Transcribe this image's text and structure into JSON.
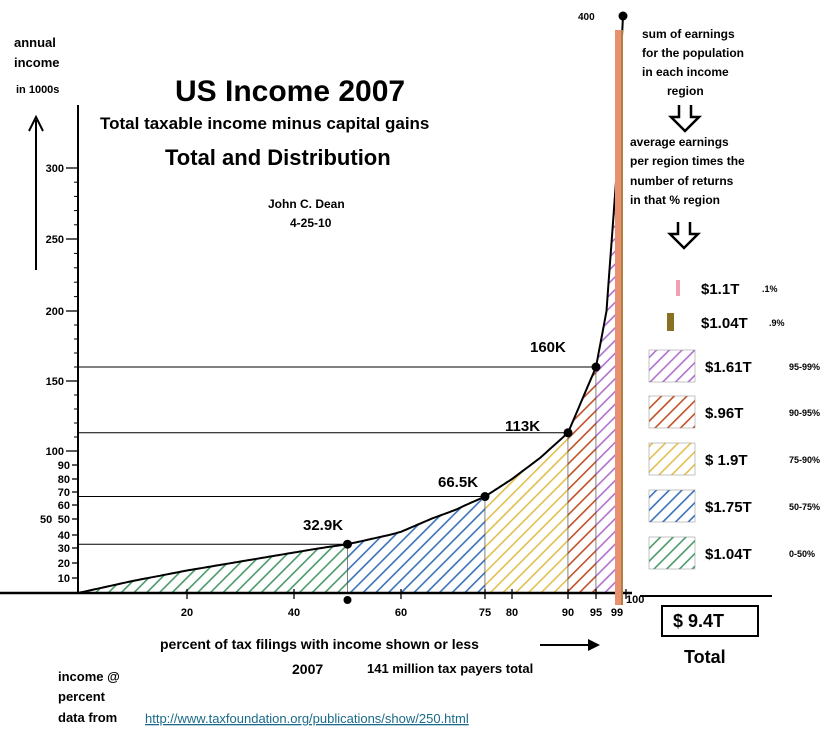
{
  "chart_data": {
    "type": "area",
    "title": "US Income 2007",
    "subtitle": "Total taxable income minus capital gains",
    "subtitle2": "Total and Distribution",
    "author": "John C. Dean",
    "date": "4-25-10",
    "ylabel_lines": [
      "annual",
      "income",
      "in 1000s"
    ],
    "xlabel": "percent of tax filings with income shown or less",
    "year": "2007",
    "population_note": "141 million tax payers total",
    "y_ticks": [
      10,
      20,
      30,
      40,
      50,
      60,
      70,
      80,
      90,
      100,
      150,
      200,
      250,
      300,
      400
    ],
    "y_tick_labels": [
      "10",
      "20",
      "30",
      "40",
      "50",
      "60",
      "70",
      "80",
      "90",
      "100",
      "150",
      "200",
      "250",
      "300",
      "400"
    ],
    "y_axis_extra_label": "50",
    "x_ticks": [
      20,
      40,
      60,
      75,
      80,
      90,
      95,
      99,
      100
    ],
    "x_tick_labels": [
      "20",
      "40",
      "60",
      "75",
      "80",
      "90",
      "95",
      "99",
      "100"
    ],
    "curve": {
      "x": [
        0,
        10,
        20,
        30,
        40,
        50,
        60,
        70,
        75,
        80,
        85,
        90,
        95,
        97,
        99,
        99.5,
        100
      ],
      "y": [
        0,
        8,
        15,
        21,
        27,
        32.9,
        42,
        57,
        66.5,
        80,
        95,
        113,
        160,
        200,
        300,
        360,
        400
      ]
    },
    "points": [
      {
        "x": 50,
        "y": 32.9,
        "label": "32.9K"
      },
      {
        "x": 75,
        "y": 66.5,
        "label": "66.5K"
      },
      {
        "x": 90,
        "y": 113,
        "label": "113K"
      },
      {
        "x": 95,
        "y": 160,
        "label": "160K"
      },
      {
        "x": 100,
        "y": 400,
        "label": ""
      }
    ],
    "regions": [
      {
        "from": 0,
        "to": 50,
        "color": "#4a9a6a",
        "total": "$1.04T",
        "range": "0-50%"
      },
      {
        "from": 50,
        "to": 75,
        "color": "#3a72b8",
        "total": "$1.75T",
        "range": "50-75%"
      },
      {
        "from": 75,
        "to": 90,
        "color": "#e0c050",
        "total": "$ 1.9T",
        "range": "75-90%"
      },
      {
        "from": 90,
        "to": 95,
        "color": "#c05028",
        "total": "$.96T",
        "range": "90-95%"
      },
      {
        "from": 95,
        "to": 99,
        "color": "#b070d0",
        "total": "$1.61T",
        "range": "95-99%"
      },
      {
        "from": 99,
        "to": 99.9,
        "color": "#8a7020",
        "total": "$1.04T",
        "range": ".9%"
      },
      {
        "from": 99.9,
        "to": 100,
        "color": "#f0a0b0",
        "total": "$1.1T",
        "range": ".1%"
      }
    ],
    "top_band_color": "#e89070",
    "legend_order": [
      6,
      5,
      4,
      3,
      2,
      1,
      0
    ],
    "right_notes": {
      "sum_lines": [
        "sum of earnings",
        "for the  population",
        "in each income",
        "region"
      ],
      "avg_lines": [
        "average earnings",
        "per region times the",
        "number of returns",
        "in that % region"
      ]
    },
    "total_value": "$ 9.4T",
    "total_label": "Total",
    "source": {
      "lines": [
        "income @",
        "percent",
        "data from"
      ],
      "url": "http://www.taxfoundation.org/publications/show/250.html"
    }
  }
}
